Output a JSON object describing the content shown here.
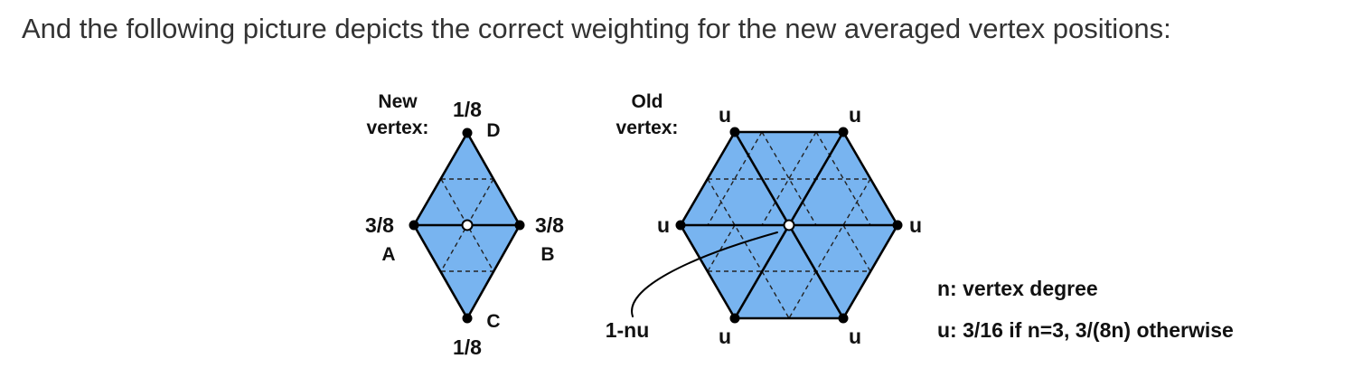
{
  "intro_text": "And the following picture depicts the correct weighting for the new averaged vertex positions:",
  "colors": {
    "face_fill": "#78b4f0",
    "edge": "#000000",
    "text": "#333333"
  },
  "new_vertex": {
    "title_line1": "New",
    "title_line2": "vertex:",
    "weights": {
      "A": "3/8",
      "B": "3/8",
      "C": "1/8",
      "D": "1/8"
    },
    "names": {
      "A": "A",
      "B": "B",
      "C": "C",
      "D": "D"
    }
  },
  "old_vertex": {
    "title_line1": "Old",
    "title_line2": "vertex:",
    "neighbor_weight": "u",
    "center_weight": "1-nu"
  },
  "legend": {
    "line1": "n: vertex degree",
    "line2": "u: 3/16 if n=3, 3/(8n) otherwise"
  }
}
